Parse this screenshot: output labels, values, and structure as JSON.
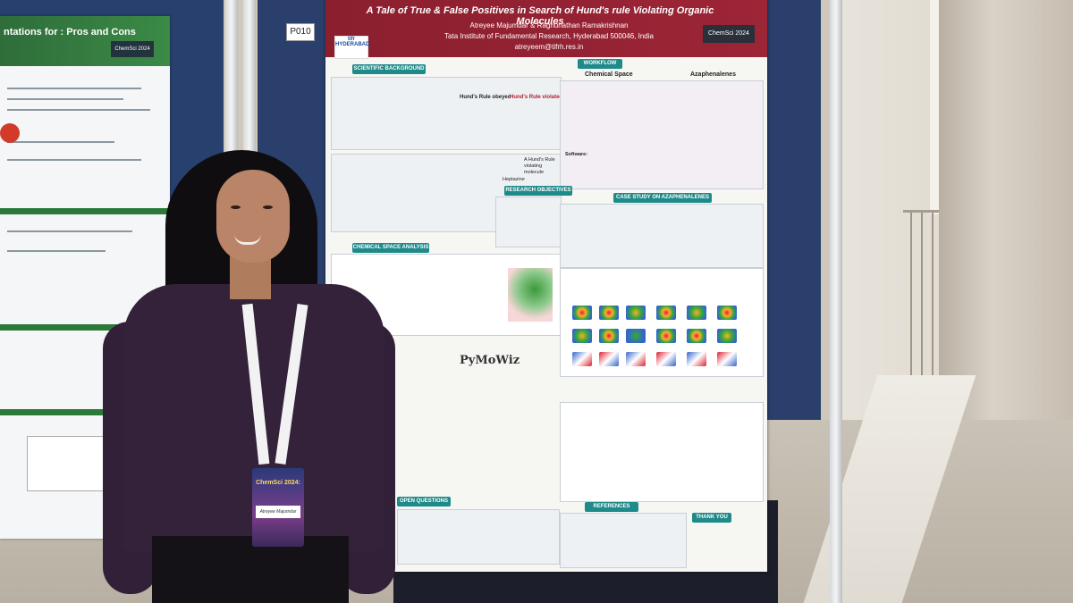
{
  "scene": {
    "board_tag": "P010"
  },
  "main_poster": {
    "title": "A Tale of True & False Positives in Search of Hund's rule Violating Organic Molecules",
    "authors": "Atreyee Majumdar & Raghunathan Ramakrishnan",
    "institution": "Tata Institute of Fundamental Research, Hyderabad 500046, India",
    "email": "atreyeem@tifrh.res.in",
    "badge": "ChemSci 2024",
    "logo": "tifr HYDERABAD",
    "sections": {
      "background": "SCIENTIFIC BACKGROUND",
      "workflow": "WORKFLOW",
      "objectives": "RESEARCH OBJECTIVES",
      "chem_space": "CHEMICAL SPACE ANALYSIS",
      "case_study": "CASE STUDY ON AZAPHENALENES",
      "open_questions": "OPEN QUESTIONS",
      "references": "REFERENCES",
      "thanks": "THANK YOU"
    },
    "workflow_labels": {
      "chem_space": "Chemical Space",
      "aza": "Azaphenalenes"
    },
    "hund_obeyed": "Hund's Rule obeyed",
    "hund_violated": "Hund's Rule violated",
    "hund_violating": "A Hund's Rule violating molecule",
    "heptazine": "Heptazine",
    "software": "Software:",
    "pymolviz": "PyMoWiz"
  },
  "left_poster": {
    "title": "ntations for : Pros and Cons",
    "badge": "ChemSci 2024"
  },
  "attendee_badge": {
    "event": "ChemSci 2024:",
    "name": "Atreyee Majumdar"
  }
}
